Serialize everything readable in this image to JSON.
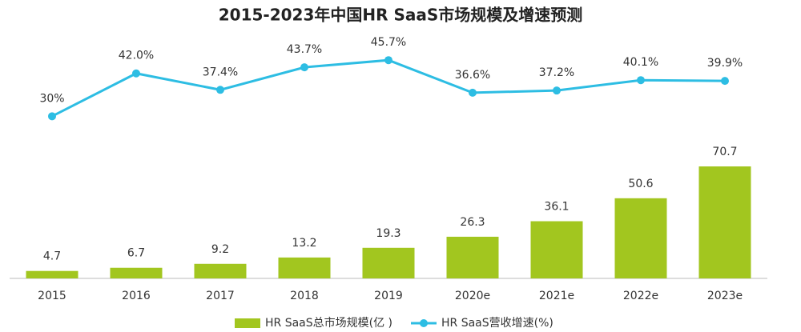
{
  "chart_data": {
    "type": "bar-line",
    "title": "2015-2023年中国HR SaaS市场规模及增速预测",
    "categories": [
      "2015",
      "2016",
      "2017",
      "2018",
      "2019",
      "2020e",
      "2021e",
      "2022e",
      "2023e"
    ],
    "series": [
      {
        "name": "HR SaaS总市场规模(亿 )",
        "type": "bar",
        "color": "#a2c61f",
        "values": [
          4.7,
          6.7,
          9.2,
          13.2,
          19.3,
          26.3,
          36.1,
          50.6,
          70.7
        ]
      },
      {
        "name": "HR SaaS营收增速(%)",
        "type": "line",
        "axis": "y2",
        "color": "#2dbde3",
        "values": [
          30,
          42.0,
          37.4,
          43.7,
          45.7,
          36.6,
          37.2,
          40.1,
          39.9
        ],
        "value_labels": [
          "30%",
          "42.0%",
          "37.4%",
          "43.7%",
          "45.7%",
          "36.6%",
          "37.2%",
          "40.1%",
          "39.9%"
        ]
      }
    ],
    "ylim": [
      0,
      100
    ],
    "y2lim": [
      20,
      50
    ],
    "grid": false,
    "legend": "bottom"
  }
}
